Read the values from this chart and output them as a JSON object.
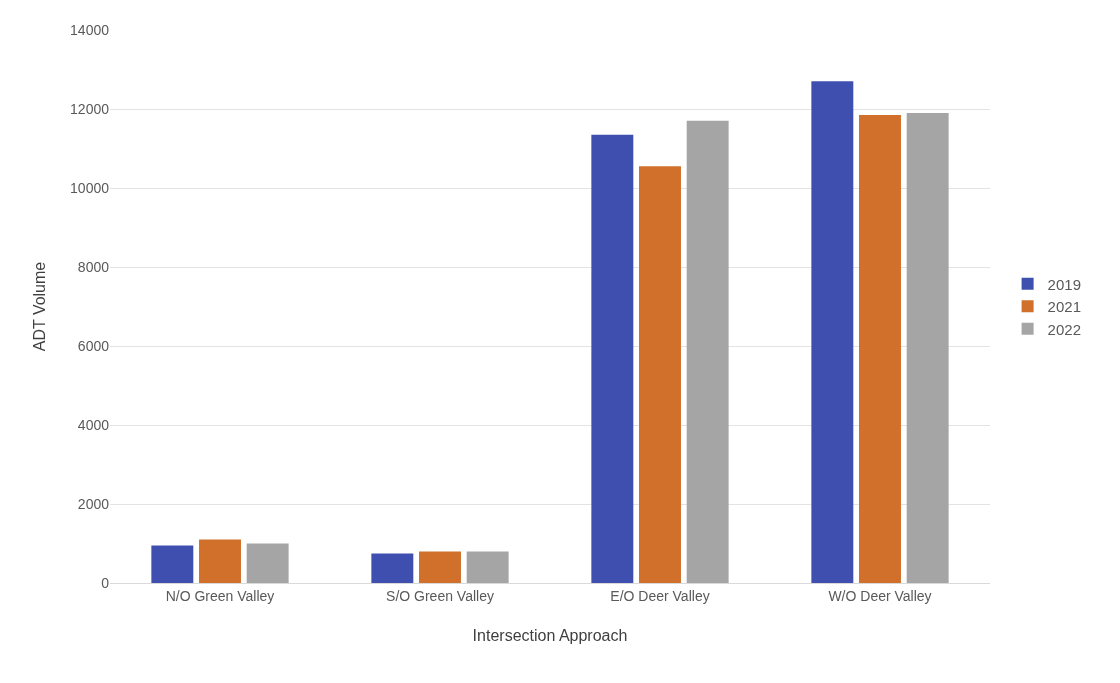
{
  "chart_data": {
    "type": "bar",
    "xlabel": "Intersection Approach",
    "ylabel": "ADT Volume",
    "categories": [
      "N/O Green Valley",
      "S/O Green Valley",
      "E/O Deer Valley",
      "W/O Deer Valley"
    ],
    "series": [
      {
        "name": "2019",
        "color": "#3f4fb0",
        "values": [
          950,
          750,
          11350,
          12700
        ]
      },
      {
        "name": "2021",
        "color": "#d0702a",
        "values": [
          1100,
          800,
          10550,
          11850
        ]
      },
      {
        "name": "2022",
        "color": "#a5a5a5",
        "values": [
          1000,
          800,
          11700,
          11900
        ]
      }
    ],
    "ylim": [
      0,
      14000
    ],
    "yticks": [
      0,
      2000,
      4000,
      6000,
      8000,
      10000,
      12000,
      14000
    ],
    "grid": "y",
    "legend": "right"
  }
}
